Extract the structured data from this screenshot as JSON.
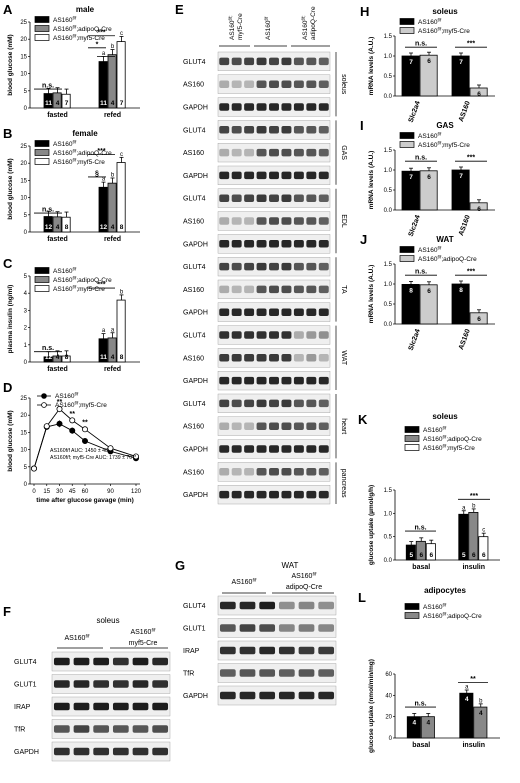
{
  "figure": {
    "panels": {
      "A": "A",
      "B": "B",
      "C": "C",
      "D": "D",
      "E": "E",
      "F": "F",
      "G": "G",
      "H": "H",
      "I": "I",
      "J": "J",
      "K": "K",
      "L": "L"
    },
    "legend": {
      "flf": "AS160f/f",
      "adipo": "AS160f/f;adipoQ-Cre",
      "myf5": "AS160f/f;myf5-Cre"
    },
    "stats": {
      "ns": "n.s.",
      "star1": "*",
      "star2": "**",
      "star3": "***",
      "section": "§"
    },
    "panel_E": {
      "cols": [
        "AS160f/f; myf5-Cre",
        "AS160f/f",
        "AS160f/f; adipoQ-Cre"
      ],
      "rows": [
        "GLUT4",
        "AS160",
        "GAPDH",
        "GLUT4",
        "AS160",
        "GAPDH",
        "GLUT4",
        "AS160",
        "GAPDH",
        "GLUT4",
        "AS160",
        "GAPDH",
        "GLUT4",
        "AS160",
        "GAPDH",
        "GLUT4",
        "AS160",
        "GAPDH",
        "AS160",
        "GAPDH"
      ],
      "tissues": [
        "soleus",
        "GAS",
        "EDL",
        "TA",
        "WAT",
        "heart",
        "pancreas"
      ]
    },
    "panel_F": {
      "title": "soleus",
      "cols": [
        "AS160f/f",
        "AS160f/f myf5-Cre"
      ],
      "rows": [
        "GLUT4",
        "GLUT1",
        "IRAP",
        "TfR",
        "GAPDH"
      ]
    },
    "panel_G": {
      "title": "WAT",
      "cols": [
        "AS160f/f",
        "AS160f/f adipoQ-Cre"
      ],
      "rows": [
        "GLUT4",
        "GLUT1",
        "IRAP",
        "TfR",
        "GAPDH"
      ]
    },
    "panel_D_auc": {
      "line1": "AS160f/f AUC: 1450 ± 48",
      "line2": "AS160f/f; myf5-Cre AUC: 1739 ± 70**"
    }
  },
  "chart_data": [
    {
      "panel": "A",
      "type": "bar",
      "title": "male",
      "ylabel": "blood glucose (mM)",
      "ylim": [
        0,
        25
      ],
      "yticks": [
        0,
        5,
        10,
        15,
        20,
        25
      ],
      "categories": [
        "fasted",
        "refed"
      ],
      "series": [
        {
          "name": "AS160f/f",
          "color": "#000000",
          "values": [
            4.2,
            13.5
          ],
          "n": [
            11,
            11
          ],
          "letters": [
            "",
            "a"
          ]
        },
        {
          "name": "AS160f/f;adipoQ-Cre",
          "color": "#888888",
          "values": [
            4.4,
            15.5
          ],
          "n": [
            4,
            4
          ],
          "letters": [
            "",
            "b"
          ]
        },
        {
          "name": "AS160f/f;myf5-Cre",
          "color": "#ffffff",
          "values": [
            4.0,
            19.3
          ],
          "n": [
            7,
            7
          ],
          "letters": [
            "",
            "c"
          ]
        }
      ]
    },
    {
      "panel": "B",
      "type": "bar",
      "title": "female",
      "ylabel": "blood glucose (mM)",
      "ylim": [
        0,
        25
      ],
      "yticks": [
        0,
        5,
        10,
        15,
        20,
        25
      ],
      "categories": [
        "fasted",
        "refed"
      ],
      "series": [
        {
          "name": "AS160f/f",
          "color": "#000000",
          "values": [
            4.5,
            13.0
          ],
          "n": [
            12,
            12
          ],
          "letters": [
            "",
            "a"
          ]
        },
        {
          "name": "AS160f/f;adipoQ-Cre",
          "color": "#888888",
          "values": [
            4.4,
            14.2
          ],
          "n": [
            4,
            4
          ],
          "letters": [
            "",
            "b"
          ]
        },
        {
          "name": "AS160f/f;myf5-Cre",
          "color": "#ffffff",
          "values": [
            4.3,
            20.2
          ],
          "n": [
            8,
            8
          ],
          "letters": [
            "",
            "c"
          ]
        }
      ]
    },
    {
      "panel": "C",
      "type": "bar",
      "ylabel": "plasma insulin (ng/ml)",
      "ylim": [
        0,
        5
      ],
      "yticks": [
        0,
        1,
        2,
        3,
        4,
        5
      ],
      "categories": [
        "fasted",
        "refed"
      ],
      "series": [
        {
          "name": "AS160f/f",
          "color": "#000000",
          "values": [
            0.3,
            1.35
          ],
          "n": [
            12,
            11
          ],
          "letters": [
            "",
            "a"
          ]
        },
        {
          "name": "AS160f/f;adipoQ-Cre",
          "color": "#888888",
          "values": [
            0.35,
            1.4
          ],
          "n": [
            4,
            4
          ],
          "letters": [
            "",
            "a"
          ]
        },
        {
          "name": "AS160f/f;myf5-Cre",
          "color": "#ffffff",
          "values": [
            0.35,
            3.6
          ],
          "n": [
            8,
            8
          ],
          "letters": [
            "",
            "b"
          ]
        }
      ]
    },
    {
      "panel": "D",
      "type": "line",
      "xlabel": "time after glucose gavage (min)",
      "ylabel": "blood glucose (mM)",
      "xlim": [
        0,
        120
      ],
      "ylim": [
        0,
        25
      ],
      "xticks": [
        0,
        15,
        30,
        45,
        60,
        90,
        120
      ],
      "yticks": [
        0,
        5,
        10,
        15,
        20,
        25
      ],
      "series": [
        {
          "name": "AS160f/f",
          "x": [
            0,
            15,
            30,
            45,
            60,
            90,
            120
          ],
          "y": [
            4.5,
            16.6,
            17.5,
            15.5,
            12.5,
            9.5,
            7.5
          ],
          "err": [
            0.3,
            0.6,
            1.0,
            0.9,
            0.8,
            0.6,
            0.5
          ],
          "fill": "#000000"
        },
        {
          "name": "AS160f/f;myf5-Cre",
          "x": [
            0,
            15,
            30,
            45,
            60,
            90,
            120
          ],
          "y": [
            4.5,
            16.8,
            21.8,
            18.5,
            15.9,
            10.4,
            8.0
          ],
          "err": [
            0.3,
            0.6,
            0.9,
            0.7,
            0.8,
            0.6,
            0.5
          ],
          "fill": "#ffffff"
        }
      ],
      "sig": [
        {
          "x": 30,
          "label": "**"
        },
        {
          "x": 45,
          "label": "**"
        },
        {
          "x": 60,
          "label": "**"
        }
      ]
    },
    {
      "panel": "H",
      "type": "bar",
      "title": "soleus",
      "ylabel": "mRNA levels (A.U.)",
      "ylim": [
        0,
        1.5
      ],
      "yticks": [
        0,
        0.5,
        1.0,
        1.5
      ],
      "categories": [
        "Slc2a4",
        "AS160"
      ],
      "series": [
        {
          "name": "AS160f/f",
          "color": "#000000",
          "values": [
            1.0,
            1.0
          ],
          "n": [
            7,
            7
          ]
        },
        {
          "name": "AS160f/f;myf5-Cre",
          "color": "#cccccc",
          "values": [
            1.02,
            0.2
          ],
          "n": [
            6,
            6
          ]
        }
      ]
    },
    {
      "panel": "I",
      "type": "bar",
      "title": "GAS",
      "ylabel": "mRNA levels (A.U.)",
      "ylim": [
        0,
        1.5
      ],
      "yticks": [
        0,
        0.5,
        1.0,
        1.5
      ],
      "categories": [
        "Slc2a4",
        "AS160"
      ],
      "series": [
        {
          "name": "AS160f/f",
          "color": "#000000",
          "values": [
            0.97,
            1.0
          ],
          "n": [
            7,
            7
          ]
        },
        {
          "name": "AS160f/f;myf5-Cre",
          "color": "#cccccc",
          "values": [
            0.98,
            0.18
          ],
          "n": [
            6,
            6
          ]
        }
      ]
    },
    {
      "panel": "J",
      "type": "bar",
      "title": "WAT",
      "ylabel": "mRNA levels (A.U.)",
      "ylim": [
        0,
        1.5
      ],
      "yticks": [
        0,
        0.5,
        1.0,
        1.5
      ],
      "categories": [
        "Slc2a4",
        "AS160"
      ],
      "series": [
        {
          "name": "AS160f/f",
          "color": "#000000",
          "values": [
            0.99,
            1.0
          ],
          "n": [
            8,
            8
          ]
        },
        {
          "name": "AS160f/f;adipoQ-Cre",
          "color": "#cccccc",
          "values": [
            0.98,
            0.28
          ],
          "n": [
            6,
            6
          ]
        }
      ]
    },
    {
      "panel": "K",
      "type": "bar",
      "title": "soleus",
      "ylabel": "glucose uptake (µmol/g/h)",
      "ylim": [
        0,
        1.5
      ],
      "yticks": [
        0,
        0.5,
        1.0,
        1.5
      ],
      "categories": [
        "basal",
        "insulin"
      ],
      "series": [
        {
          "name": "AS160f/f",
          "color": "#000000",
          "values": [
            0.32,
            0.98
          ],
          "n": [
            5,
            5
          ],
          "letters": [
            "",
            "a"
          ]
        },
        {
          "name": "AS160f/f;adipoQ-Cre",
          "color": "#888888",
          "values": [
            0.4,
            1.02
          ],
          "n": [
            6,
            6
          ],
          "letters": [
            "",
            "b"
          ]
        },
        {
          "name": "AS160f/f;myf5-Cre",
          "color": "#ffffff",
          "values": [
            0.35,
            0.5
          ],
          "n": [
            6,
            6
          ],
          "letters": [
            "",
            "c"
          ]
        }
      ]
    },
    {
      "panel": "L",
      "type": "bar",
      "title": "adipocytes",
      "ylabel": "glucose uptake (nmol/min/mg)",
      "ylim": [
        0,
        60
      ],
      "yticks": [
        0,
        20,
        40,
        60
      ],
      "categories": [
        "basal",
        "insulin"
      ],
      "series": [
        {
          "name": "AS160f/f",
          "color": "#000000",
          "values": [
            20,
            42
          ],
          "n": [
            4,
            4
          ],
          "letters": [
            "",
            "a"
          ]
        },
        {
          "name": "AS160f/f;adipoQ-Cre",
          "color": "#888888",
          "values": [
            20,
            29
          ],
          "n": [
            4,
            4
          ],
          "letters": [
            "",
            "b"
          ]
        }
      ]
    }
  ]
}
